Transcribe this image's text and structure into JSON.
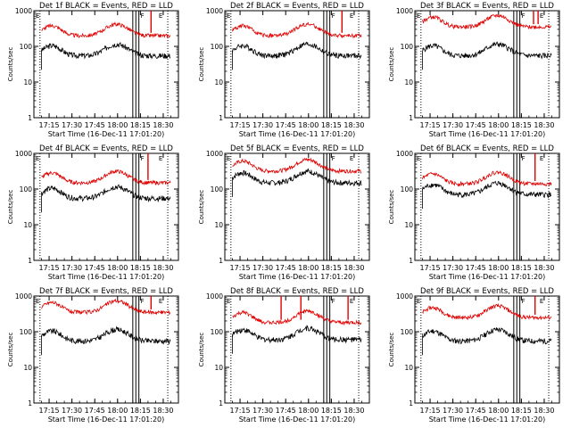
{
  "panel_titles": [
    "Det 1f BLACK = Events, RED = LLD",
    "Det 2f BLACK = Events, RED = LLD",
    "Det 3f BLACK = Events, RED = LLD",
    "Det 4f BLACK = Events, RED = LLD",
    "Det 5f BLACK = Events, RED = LLD",
    "Det 6f BLACK = Events, RED = LLD",
    "Det 7f BLACK = Events, RED = LLD",
    "Det 8f BLACK = Events, RED = LLD",
    "Det 9f BLACK = Events, RED = LLD"
  ],
  "xlabel": "Start Time (16-Dec-11 17:01:20)",
  "ylabel": "Counts/sec",
  "x_tick_labels": [
    "17:15",
    "17:30",
    "17:45",
    "18:00",
    "18:15",
    "18:30"
  ],
  "y_tick_labels": [
    "1",
    "10",
    "100",
    "1000"
  ],
  "corner_flags": {
    "left": "E",
    "right_1": "F",
    "right_2": "E"
  },
  "colors": {
    "events": "#000000",
    "lld": "#e00000",
    "axes": "#000000"
  },
  "chart_data": {
    "type": "line",
    "scale": "log",
    "xlim": [
      "17:05",
      "18:40"
    ],
    "ylim": [
      1,
      1000
    ],
    "x_ticks": [
      "17:15",
      "17:30",
      "17:45",
      "18:00",
      "18:15",
      "18:30"
    ],
    "series_legend": "BLACK = Events, RED = LLD",
    "panels": [
      {
        "det": "1f",
        "events_base": 55,
        "lld_base": 200,
        "lld_spikes": [
          "18:22"
        ]
      },
      {
        "det": "2f",
        "events_base": 55,
        "lld_base": 200,
        "lld_spikes": [
          "18:22"
        ]
      },
      {
        "det": "3f",
        "events_base": 55,
        "lld_base": 350,
        "lld_spikes": [
          "18:23",
          "18:26"
        ]
      },
      {
        "det": "4f",
        "events_base": 55,
        "lld_base": 150,
        "lld_spikes": [
          "18:20"
        ]
      },
      {
        "det": "5f",
        "events_base": 150,
        "lld_base": 320,
        "lld_spikes": []
      },
      {
        "det": "6f",
        "events_base": 70,
        "lld_base": 140,
        "lld_spikes": [
          "18:24"
        ]
      },
      {
        "det": "7f",
        "events_base": 55,
        "lld_base": 350,
        "lld_spikes": [
          "18:22"
        ]
      },
      {
        "det": "8f",
        "events_base": 60,
        "lld_base": 180,
        "lld_spikes": [
          "17:42",
          "17:55",
          "18:26"
        ]
      },
      {
        "det": "9f",
        "events_base": 55,
        "lld_base": 250,
        "lld_spikes": [
          "18:24"
        ]
      }
    ]
  }
}
